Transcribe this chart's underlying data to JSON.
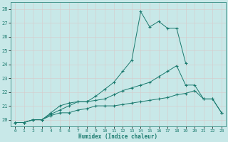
{
  "xlabel": "Humidex (Indice chaleur)",
  "x_values": [
    0,
    1,
    2,
    3,
    4,
    5,
    6,
    7,
    8,
    9,
    10,
    11,
    12,
    13,
    14,
    15,
    16,
    17,
    18,
    19,
    20,
    21,
    22,
    23
  ],
  "line_top": [
    19.8,
    19.8,
    20.0,
    20.0,
    20.5,
    21.0,
    21.2,
    21.3,
    21.3,
    21.7,
    22.2,
    22.7,
    23.5,
    24.3,
    27.8,
    26.7,
    27.1,
    26.6,
    26.6,
    24.1,
    null,
    null,
    null,
    null
  ],
  "line_mid": [
    19.8,
    19.8,
    20.0,
    20.0,
    20.4,
    20.7,
    21.0,
    21.3,
    21.3,
    21.4,
    21.5,
    21.8,
    22.1,
    22.3,
    22.5,
    22.7,
    23.1,
    23.5,
    23.9,
    22.5,
    22.5,
    21.5,
    21.5,
    20.5
  ],
  "line_bot": [
    19.8,
    19.8,
    20.0,
    20.0,
    20.3,
    20.5,
    20.5,
    20.7,
    20.8,
    21.0,
    21.0,
    21.0,
    21.1,
    21.2,
    21.3,
    21.4,
    21.5,
    21.6,
    21.8,
    21.9,
    22.1,
    21.5,
    21.5,
    20.5
  ],
  "xlim": [
    0,
    23
  ],
  "ylim": [
    19.5,
    28.5
  ],
  "yticks": [
    20,
    21,
    22,
    23,
    24,
    25,
    26,
    27,
    28
  ],
  "xticks": [
    0,
    1,
    2,
    3,
    4,
    5,
    6,
    7,
    8,
    9,
    10,
    11,
    12,
    13,
    14,
    15,
    16,
    17,
    18,
    19,
    20,
    21,
    22,
    23
  ],
  "line_color": "#1a7a6e",
  "bg_color": "#c8e8e8",
  "grid_color": "#b8d8d8"
}
